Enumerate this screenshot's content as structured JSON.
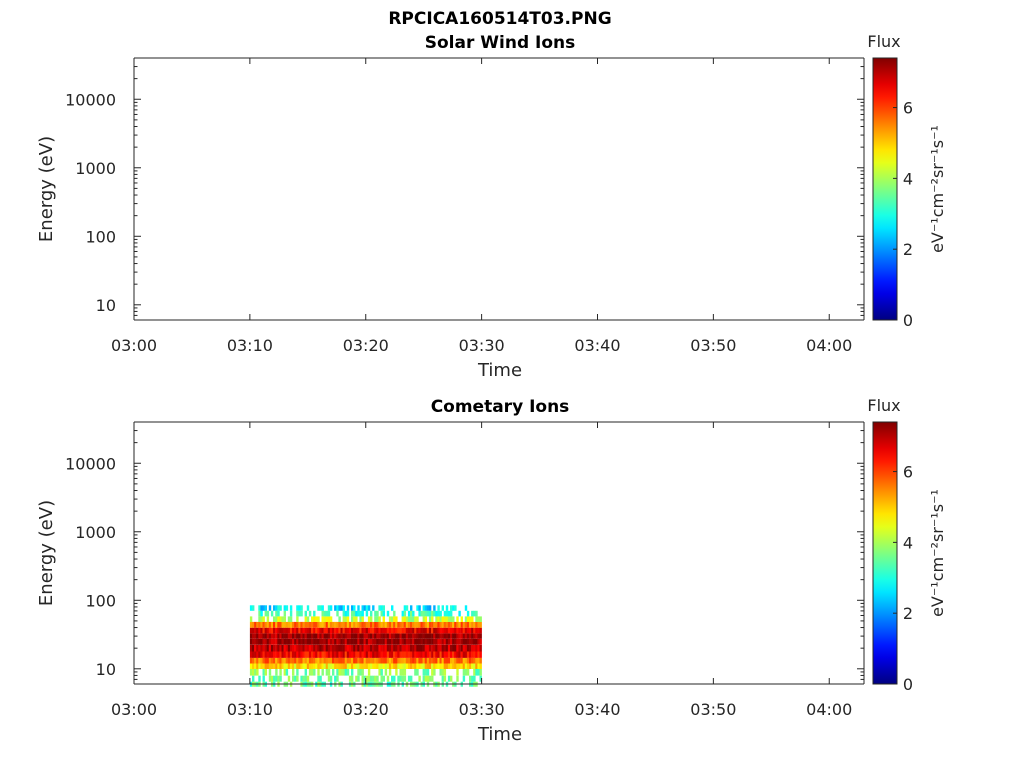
{
  "figure": {
    "title": "RPCICA160514T03.PNG"
  },
  "chart_data": [
    {
      "type": "heatmap",
      "title": "Solar Wind Ions",
      "xlabel": "Time",
      "ylabel": "Energy (eV)",
      "xticks": [
        "03:00",
        "03:10",
        "03:20",
        "03:30",
        "03:40",
        "03:50",
        "04:00"
      ],
      "xlim": [
        "03:00",
        "04:03"
      ],
      "yscale": "log",
      "yticks": [
        "10",
        "100",
        "1000",
        "10000"
      ],
      "ylim": [
        6,
        40000
      ],
      "colorbar": {
        "label": "Flux",
        "unit": "eV⁻¹cm⁻²sr⁻¹s⁻¹",
        "ticks": [
          "0",
          "2",
          "4",
          "6"
        ],
        "range": [
          0,
          7.4
        ],
        "colormap": "jet"
      },
      "data": []
    },
    {
      "type": "heatmap",
      "title": "Cometary Ions",
      "xlabel": "Time",
      "ylabel": "Energy (eV)",
      "xticks": [
        "03:00",
        "03:10",
        "03:20",
        "03:30",
        "03:40",
        "03:50",
        "04:00"
      ],
      "xlim": [
        "03:00",
        "04:03"
      ],
      "yscale": "log",
      "yticks": [
        "10",
        "100",
        "1000",
        "10000"
      ],
      "ylim": [
        6,
        40000
      ],
      "colorbar": {
        "label": "Flux",
        "unit": "eV⁻¹cm⁻²sr⁻¹s⁻¹",
        "ticks": [
          "0",
          "2",
          "4",
          "6"
        ],
        "range": [
          0,
          7.4
        ],
        "colormap": "jet"
      },
      "data": [
        {
          "energy_eV": 6,
          "flux": 3.5
        },
        {
          "energy_eV": 7,
          "flux": 3.6
        },
        {
          "energy_eV": 9,
          "flux": 3.7
        },
        {
          "energy_eV": 11,
          "flux": 4.8
        },
        {
          "energy_eV": 13,
          "flux": 5.6
        },
        {
          "energy_eV": 16,
          "flux": 6.5
        },
        {
          "energy_eV": 20,
          "flux": 7.0
        },
        {
          "energy_eV": 25,
          "flux": 7.2
        },
        {
          "energy_eV": 30,
          "flux": 7.2
        },
        {
          "energy_eV": 36,
          "flux": 6.6
        },
        {
          "energy_eV": 44,
          "flux": 5.6
        },
        {
          "energy_eV": 53,
          "flux": 4.2
        },
        {
          "energy_eV": 64,
          "flux": 3.2
        },
        {
          "energy_eV": 77,
          "flux": 2.6
        }
      ],
      "time_range": [
        "03:10",
        "03:30"
      ]
    }
  ]
}
